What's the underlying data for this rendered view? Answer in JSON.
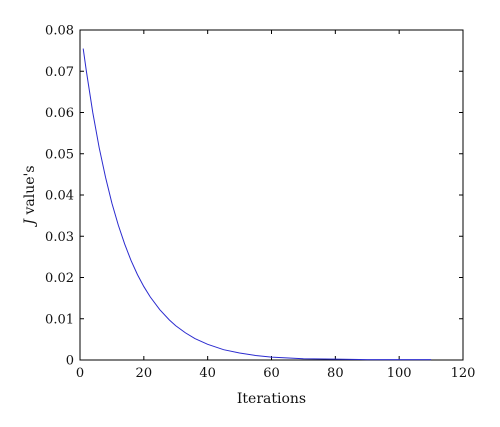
{
  "chart_data": {
    "type": "line",
    "title": "",
    "xlabel": "Iterations",
    "ylabel_italic": "J",
    "ylabel_rest": " value's",
    "xlim": [
      0,
      120
    ],
    "ylim": [
      0,
      0.08
    ],
    "xticks": [
      0,
      20,
      40,
      60,
      80,
      100,
      120
    ],
    "yticks": [
      0,
      0.01,
      0.02,
      0.03,
      0.04,
      0.05,
      0.06,
      0.07,
      0.08
    ],
    "xtick_labels": [
      "0",
      "20",
      "40",
      "60",
      "80",
      "100",
      "120"
    ],
    "ytick_labels": [
      "0",
      "0.01",
      "0.02",
      "0.03",
      "0.04",
      "0.05",
      "0.06",
      "0.07",
      "0.08"
    ],
    "grid": false,
    "legend": "none",
    "line_color": "#2b2bcf",
    "series": [
      {
        "x": [
          1,
          2,
          4,
          6,
          8,
          10,
          12,
          14,
          16,
          18,
          20,
          22,
          25,
          28,
          30,
          33,
          36,
          40,
          45,
          50,
          55,
          60,
          70,
          80,
          90,
          100,
          110
        ],
        "values": [
          0.0755,
          0.07,
          0.06,
          0.0515,
          0.0443,
          0.038,
          0.0327,
          0.0281,
          0.0241,
          0.0207,
          0.0178,
          0.0153,
          0.0122,
          0.0097,
          0.0083,
          0.0066,
          0.0052,
          0.0038,
          0.0025,
          0.0017,
          0.0011,
          0.0007,
          0.0003,
          0.0002,
          0.0001,
          0.0001,
          0.0001
        ]
      }
    ]
  }
}
